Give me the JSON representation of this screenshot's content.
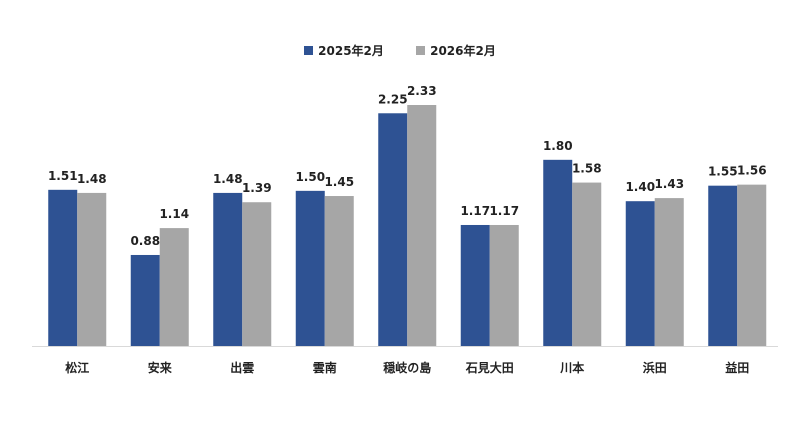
{
  "chart_data": {
    "type": "bar",
    "title": "",
    "xlabel": "",
    "ylabel": "",
    "categories": [
      "松江",
      "安来",
      "出雲",
      "雲南",
      "穏岐の島",
      "石見大田",
      "川本",
      "浜田",
      "益田"
    ],
    "series": [
      {
        "name": "2025年2月",
        "color": "#2E5293",
        "values": [
          1.51,
          0.88,
          1.48,
          1.5,
          2.25,
          1.17,
          1.8,
          1.4,
          1.55
        ],
        "labels": [
          "1.51",
          "0.88",
          "1.48",
          "1.50",
          "2.25",
          "1.17",
          "1.80",
          "1.40",
          "1.55"
        ]
      },
      {
        "name": "2026年2月",
        "color": "#A6A6A6",
        "values": [
          1.48,
          1.14,
          1.39,
          1.45,
          2.33,
          1.17,
          1.58,
          1.43,
          1.56
        ],
        "labels": [
          "1.48",
          "1.14",
          "1.39",
          "1.45",
          "2.33",
          "1.17",
          "1.58",
          "1.43",
          "1.56"
        ]
      }
    ],
    "ylim": [
      0,
      2.33
    ],
    "grid": false,
    "legend_position": "top-center",
    "axis_line_color": "#D9D9D9"
  }
}
